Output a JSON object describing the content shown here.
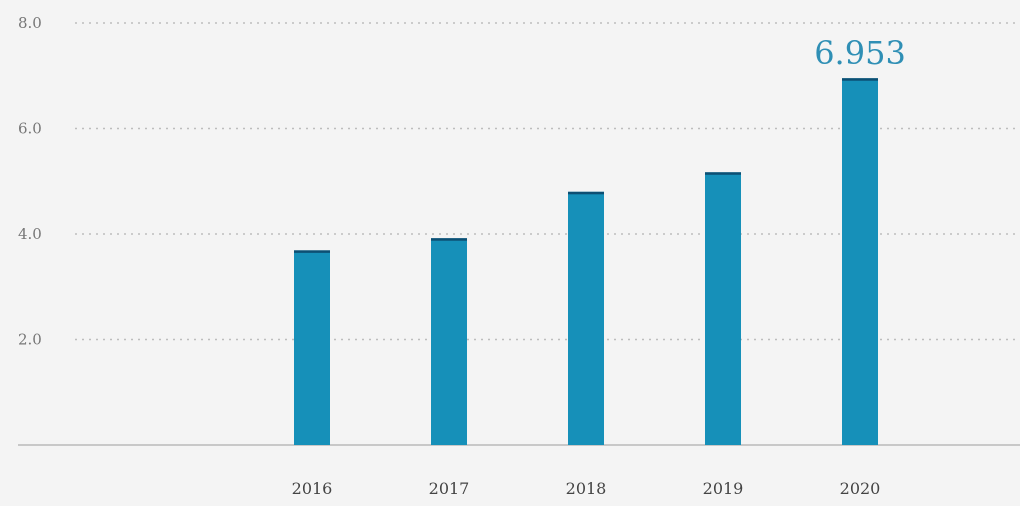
{
  "chart_data": {
    "type": "bar",
    "categories": [
      "2016",
      "2017",
      "2018",
      "2019",
      "2020"
    ],
    "values": [
      3.69,
      3.92,
      4.8,
      5.17,
      6.953
    ],
    "ylim": [
      0,
      8
    ],
    "yticks": [
      "2.0",
      "4.0",
      "6.0",
      "8.0"
    ],
    "ytick_values": [
      2,
      4,
      6,
      8
    ],
    "data_labels": [
      {
        "category": "2020",
        "text": "6.953"
      }
    ],
    "grid": true,
    "colors": {
      "bar": "#1690b9",
      "bar_cap": "#0d4f73",
      "label": "#2f8fb5",
      "grid": "#bdbdbd",
      "axis": "#c8c8c8"
    }
  }
}
